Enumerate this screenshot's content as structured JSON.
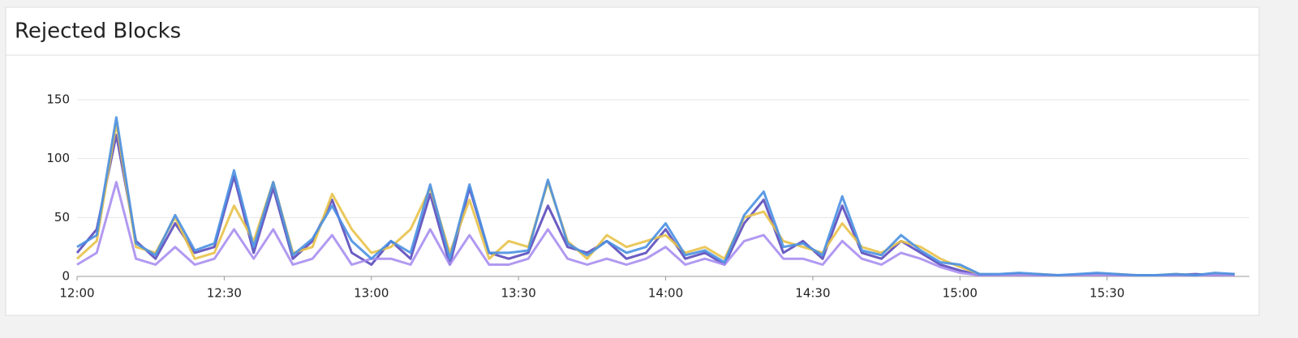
{
  "chart_data": {
    "type": "line",
    "title": "Rejected Blocks",
    "x": [
      "12:00",
      "12:04",
      "12:08",
      "12:12",
      "12:16",
      "12:20",
      "12:24",
      "12:28",
      "12:32",
      "12:36",
      "12:40",
      "12:44",
      "12:48",
      "12:52",
      "12:56",
      "13:00",
      "13:04",
      "13:08",
      "13:12",
      "13:16",
      "13:20",
      "13:24",
      "13:28",
      "13:32",
      "13:36",
      "13:40",
      "13:44",
      "13:48",
      "13:52",
      "13:56",
      "14:00",
      "14:04",
      "14:08",
      "14:12",
      "14:16",
      "14:20",
      "14:24",
      "14:28",
      "14:32",
      "14:36",
      "14:40",
      "14:44",
      "14:48",
      "14:52",
      "14:56",
      "15:00",
      "15:04",
      "15:08",
      "15:12",
      "15:16",
      "15:20",
      "15:24",
      "15:28",
      "15:32",
      "15:36",
      "15:40",
      "15:44",
      "15:48",
      "15:52",
      "15:56"
    ],
    "series": [
      {
        "color": "#5b4bbd",
        "values": [
          20,
          40,
          120,
          30,
          15,
          45,
          20,
          25,
          85,
          20,
          75,
          15,
          30,
          65,
          20,
          10,
          30,
          15,
          70,
          10,
          75,
          20,
          15,
          20,
          60,
          25,
          20,
          30,
          15,
          20,
          40,
          15,
          20,
          10,
          45,
          65,
          20,
          30,
          15,
          60,
          20,
          15,
          30,
          20,
          10,
          5,
          1,
          1,
          2,
          1,
          1,
          1,
          2,
          1,
          1,
          1,
          1,
          2,
          1,
          2
        ]
      },
      {
        "color": "#e8c24a",
        "values": [
          15,
          30,
          130,
          25,
          20,
          50,
          15,
          20,
          60,
          30,
          80,
          20,
          25,
          70,
          40,
          20,
          25,
          40,
          75,
          20,
          65,
          15,
          30,
          25,
          80,
          30,
          15,
          35,
          25,
          30,
          35,
          20,
          25,
          15,
          50,
          55,
          30,
          25,
          20,
          45,
          25,
          20,
          30,
          25,
          15,
          8,
          2,
          1,
          1,
          2,
          1,
          1,
          1,
          2,
          1,
          1,
          2,
          1,
          2,
          1
        ]
      },
      {
        "color": "#a98ef0",
        "values": [
          10,
          20,
          80,
          15,
          10,
          25,
          10,
          15,
          40,
          15,
          40,
          10,
          15,
          35,
          10,
          15,
          15,
          10,
          40,
          10,
          35,
          10,
          10,
          15,
          40,
          15,
          10,
          15,
          10,
          15,
          25,
          10,
          15,
          10,
          30,
          35,
          15,
          15,
          10,
          30,
          15,
          10,
          20,
          15,
          8,
          3,
          1,
          1,
          1,
          1,
          1,
          1,
          1,
          1,
          1,
          1,
          1,
          1,
          1,
          1
        ]
      },
      {
        "color": "#4a90e2",
        "values": [
          25,
          35,
          135,
          28,
          18,
          52,
          22,
          28,
          90,
          25,
          80,
          18,
          32,
          60,
          30,
          15,
          30,
          20,
          78,
          15,
          78,
          20,
          20,
          22,
          82,
          28,
          18,
          30,
          20,
          25,
          45,
          18,
          22,
          12,
          52,
          72,
          25,
          28,
          18,
          68,
          22,
          18,
          35,
          22,
          12,
          10,
          2,
          2,
          3,
          2,
          1,
          2,
          3,
          2,
          1,
          1,
          2,
          1,
          3,
          2
        ]
      }
    ],
    "xlim": [
      "12:00",
      "15:59"
    ],
    "xticks": [
      "12:00",
      "12:30",
      "13:00",
      "13:30",
      "14:00",
      "14:30",
      "15:00",
      "15:30"
    ],
    "ylim": [
      0,
      150
    ],
    "yticks": [
      0,
      50,
      100,
      150
    ],
    "grid": true
  }
}
